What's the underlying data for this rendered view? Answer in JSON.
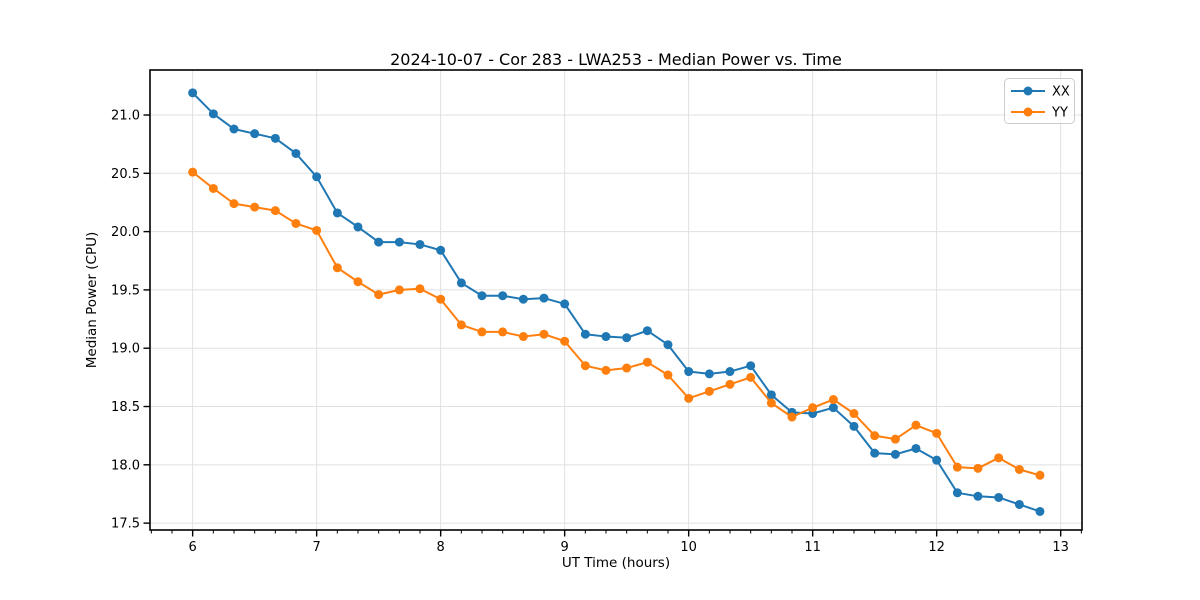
{
  "chart_data": {
    "type": "line",
    "title": "2024-10-07 - Cor 283 - LWA253 - Median Power vs. Time",
    "xlabel": "UT Time (hours)",
    "ylabel": "Median Power (CPU)",
    "x": [
      6.0,
      6.167,
      6.333,
      6.5,
      6.667,
      6.833,
      7.0,
      7.167,
      7.333,
      7.5,
      7.667,
      7.833,
      8.0,
      8.167,
      8.333,
      8.5,
      8.667,
      8.833,
      9.0,
      9.167,
      9.333,
      9.5,
      9.667,
      9.833,
      10.0,
      10.167,
      10.333,
      10.5,
      10.667,
      10.833,
      11.0,
      11.167,
      11.333,
      11.5,
      11.667,
      11.833,
      12.0,
      12.167,
      12.333,
      12.5,
      12.667,
      12.833
    ],
    "series": [
      {
        "name": "XX",
        "color": "#1f77b4",
        "values": [
          21.19,
          21.01,
          20.88,
          20.84,
          20.8,
          20.67,
          20.47,
          20.16,
          20.04,
          19.91,
          19.91,
          19.89,
          19.84,
          19.56,
          19.45,
          19.45,
          19.42,
          19.43,
          19.38,
          19.12,
          19.1,
          19.09,
          19.15,
          19.03,
          18.8,
          18.78,
          18.8,
          18.85,
          18.6,
          18.45,
          18.44,
          18.49,
          18.33,
          18.1,
          18.09,
          18.14,
          18.04,
          17.76,
          17.73,
          17.72,
          17.66,
          17.6
        ]
      },
      {
        "name": "YY",
        "color": "#ff7f0e",
        "values": [
          20.51,
          20.37,
          20.24,
          20.21,
          20.18,
          20.07,
          20.01,
          19.69,
          19.57,
          19.46,
          19.5,
          19.51,
          19.42,
          19.2,
          19.14,
          19.14,
          19.1,
          19.12,
          19.06,
          18.85,
          18.81,
          18.83,
          18.88,
          18.77,
          18.57,
          18.63,
          18.69,
          18.75,
          18.53,
          18.41,
          18.49,
          18.56,
          18.44,
          18.25,
          18.22,
          18.34,
          18.27,
          17.98,
          17.97,
          18.06,
          17.96,
          17.91
        ]
      }
    ],
    "xlim": [
      5.656,
      13.172
    ],
    "ylim": [
      17.441,
      21.386
    ],
    "xticks": [
      6,
      7,
      8,
      9,
      10,
      11,
      12,
      13
    ],
    "yticks": [
      17.5,
      18.0,
      18.5,
      19.0,
      19.5,
      20.0,
      20.5,
      21.0
    ],
    "minor_xtick_step": 0.16667,
    "grid": true,
    "grid_color": "#e0e0e0",
    "spine_color": "#000000",
    "legend_position": "upper right"
  }
}
